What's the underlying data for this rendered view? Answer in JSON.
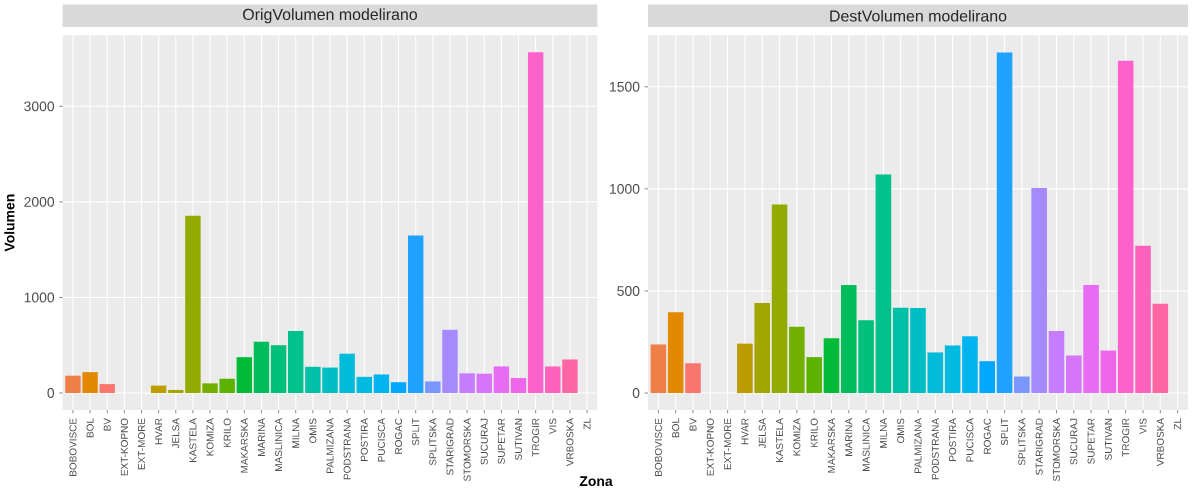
{
  "chart_data": [
    {
      "type": "bar",
      "title": "OrigVolumen modelirano",
      "xlabel": "Zona",
      "ylabel": "Volumen",
      "categories": [
        "BOBOVISCE",
        "BOL",
        "BV",
        "EXT-KOPNO",
        "EXT-MORE",
        "HVAR",
        "JELSA",
        "KASTELA",
        "KOMIZA",
        "KRILO",
        "MAKARSKA",
        "MARINA",
        "MASLINICA",
        "MILNA",
        "OMIS",
        "PALMIZANA",
        "PODSTRANA",
        "POSTIRA",
        "PUCISCA",
        "ROGAC",
        "SPLIT",
        "SPLITSKA",
        "STARIGRAD",
        "STOMORSKA",
        "SUCURAJ",
        "SUPETAR",
        "SUTIVAN",
        "TROGIR",
        "VIS",
        "VRBOSKA",
        "ZL"
      ],
      "values": [
        181,
        218,
        93,
        null,
        null,
        77,
        32,
        1855,
        101,
        149,
        375,
        536,
        500,
        649,
        274,
        266,
        411,
        169,
        194,
        113,
        1649,
        121,
        661,
        206,
        202,
        278,
        157,
        3565,
        278,
        351,
        null
      ],
      "colors": [
        "#ef7f49",
        "#e38900",
        "#f8766d",
        "#d89000",
        "#c99800",
        "#bb9d00",
        "#a3a500",
        "#93aa00",
        "#72b000",
        "#5bb300",
        "#00ba38",
        "#00bd5c",
        "#00c07b",
        "#00c08b",
        "#00c1a7",
        "#00bfc4",
        "#00bcd8",
        "#00bae0",
        "#00b4ef",
        "#00a9ff",
        "#1ea1ff",
        "#7997ff",
        "#a58aff",
        "#c77cff",
        "#d774fc",
        "#e76bf3",
        "#f066ea",
        "#ff61cc",
        "#ff62bc",
        "#ff67a4",
        "#fc717f"
      ],
      "ylim": [
        -178,
        3743
      ],
      "yticks": [
        0,
        1000,
        2000,
        3000
      ],
      "grid": true
    },
    {
      "type": "bar",
      "title": "DestVolumen modelirano",
      "categories": [
        "BOBOVISCE",
        "BOL",
        "BV",
        "EXT-KOPNO",
        "EXT-MORE",
        "HVAR",
        "JELSA",
        "KASTELA",
        "KOMIZA",
        "KRILO",
        "MAKARSKA",
        "MARINA",
        "MASLINICA",
        "MILNA",
        "OMIS",
        "PALMIZANA",
        "PODSTRANA",
        "POSTIRA",
        "PUCISCA",
        "ROGAC",
        "SPLIT",
        "SPLITSKA",
        "STARIGRAD",
        "STOMORSKA",
        "SUCURAJ",
        "SUPETAR",
        "SUTIVAN",
        "TROGIR",
        "VIS",
        "VRBOSKA",
        "ZL"
      ],
      "values": [
        238,
        396,
        146,
        null,
        null,
        242,
        441,
        923,
        325,
        176,
        268,
        529,
        356,
        1071,
        418,
        416,
        199,
        233,
        278,
        156,
        1668,
        81,
        1004,
        304,
        184,
        529,
        208,
        1628,
        722,
        437,
        null
      ],
      "colors": [
        "#ef7f49",
        "#e38900",
        "#f8766d",
        "#d89000",
        "#c99800",
        "#bb9d00",
        "#a3a500",
        "#93aa00",
        "#72b000",
        "#5bb300",
        "#00ba38",
        "#00bd5c",
        "#00c07b",
        "#00c08b",
        "#00c1a7",
        "#00bfc4",
        "#00bcd8",
        "#00bae0",
        "#00b4ef",
        "#00a9ff",
        "#1ea1ff",
        "#7997ff",
        "#a58aff",
        "#c77cff",
        "#d774fc",
        "#e76bf3",
        "#f066ea",
        "#ff61cc",
        "#ff62bc",
        "#ff67a4",
        "#fc717f"
      ],
      "ylim": [
        -83,
        1752
      ],
      "yticks": [
        0,
        500,
        1000,
        1500
      ],
      "grid": true
    }
  ]
}
